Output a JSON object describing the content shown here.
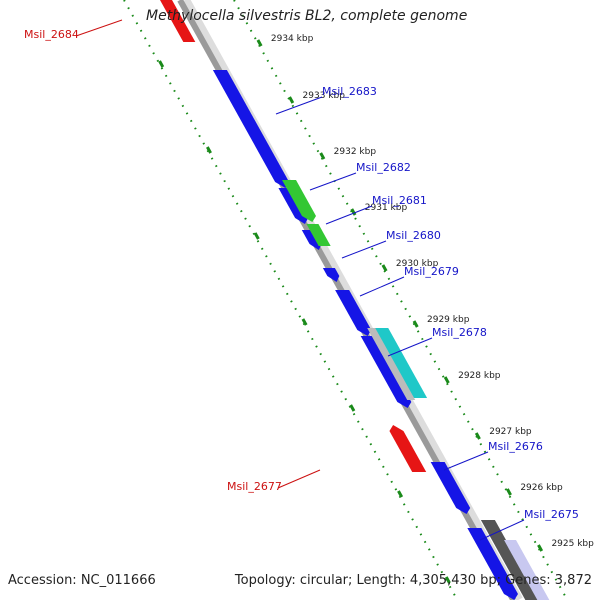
{
  "title": "Methylocella silvestris BL2, complete genome",
  "accession": "Accession: NC_011666",
  "summary": "Topology: circular; Length: 4,305,430 bp; Genes: 3,872",
  "colors": {
    "forward_gene": "#1515e6",
    "reverse_gene": "#e61515",
    "green_gene": "#33c733",
    "cyan_gene": "#1fc8c8",
    "grey_gene": "#9a9a9a",
    "backbone": "#9a9a9a",
    "tick": "#1a8a1a",
    "label_forward": "#1515c8",
    "label_reverse": "#cc1111",
    "kbp_text": "#222222"
  },
  "kbp_labels": [
    "2934 kbp",
    "2933 kbp",
    "2932 kbp",
    "2931 kbp",
    "2930 kbp",
    "2929 kbp",
    "2928 kbp",
    "2927 kbp",
    "2926 kbp",
    "2925 kbp"
  ],
  "genes": [
    {
      "label": "Msil_2684",
      "strand": "reverse",
      "color": "reverse_gene"
    },
    {
      "label": "Msil_2683",
      "strand": "forward",
      "color": "forward_gene"
    },
    {
      "label": "Msil_2682",
      "strand": "forward",
      "color": "forward_gene"
    },
    {
      "label": "Msil_2681",
      "strand": "forward",
      "color": "forward_gene"
    },
    {
      "label": "Msil_2680",
      "strand": "forward",
      "color": "forward_gene"
    },
    {
      "label": "Msil_2679",
      "strand": "forward",
      "color": "forward_gene"
    },
    {
      "label": "Msil_2678",
      "strand": "forward",
      "color": "forward_gene"
    },
    {
      "label": "Msil_2677",
      "strand": "reverse",
      "color": "reverse_gene"
    },
    {
      "label": "Msil_2676",
      "strand": "forward",
      "color": "forward_gene"
    },
    {
      "label": "Msil_2675",
      "strand": "forward",
      "color": "forward_gene"
    }
  ]
}
